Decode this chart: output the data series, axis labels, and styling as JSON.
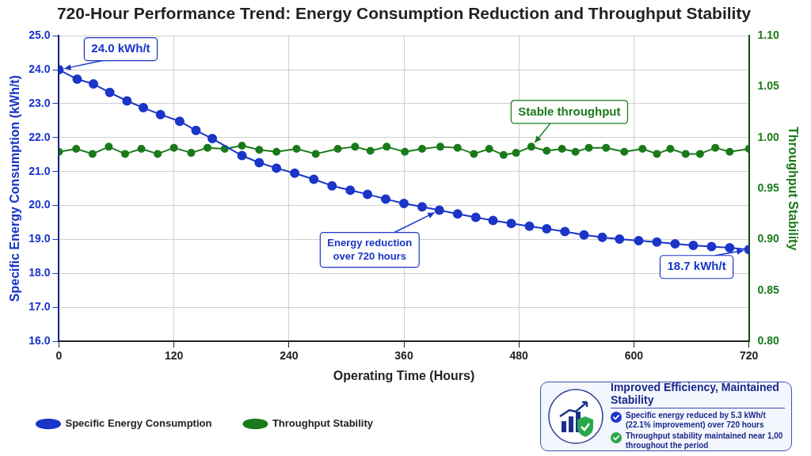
{
  "chart_data": [
    {
      "type": "line",
      "title": "720-Hour Performance Trend: Energy Consumption Reduction and Throughput Stability",
      "xlabel": "Operating Time (Hours)",
      "ylabel": "Specific Energy Consumption (kWh/t)",
      "y2label": "Throughput Stability",
      "xlim": [
        0,
        720
      ],
      "xticks": [
        0,
        120,
        240,
        360,
        480,
        600,
        720
      ],
      "ylim": [
        16,
        25
      ],
      "yticks": [
        {
          "value": 16,
          "label": "16.0"
        },
        {
          "value": 17,
          "label": "17.0"
        },
        {
          "value": 18,
          "label": "18.0"
        },
        {
          "value": 19,
          "label": "19.0"
        },
        {
          "value": 20,
          "label": "20.0"
        },
        {
          "value": 21,
          "label": "21.0"
        },
        {
          "value": 22,
          "label": "22.0"
        },
        {
          "value": 23,
          "label": "23.0"
        },
        {
          "value": 24,
          "label": "24.0"
        },
        {
          "value": 25,
          "label": "25.0"
        }
      ],
      "y2lim": [
        0.8,
        1.1
      ],
      "y2ticks": [
        {
          "value": 0.8,
          "label": "0.80"
        },
        0.85,
        {
          "value": 0.9,
          "label": "0.90"
        },
        0.95,
        {
          "value": 1.0,
          "label": "1.00"
        },
        1.05,
        {
          "value": 1.1,
          "label": "1.10"
        }
      ],
      "grid": true,
      "legend": "bottom left",
      "marker": "circle",
      "series": [
        {
          "name": "Specific Energy Consumption",
          "color": "#1a35c8",
          "x": [
            0,
            19,
            36,
            53,
            71,
            88,
            106,
            126,
            143,
            160,
            191,
            209,
            227,
            246,
            266,
            285,
            304,
            322,
            341,
            360,
            379,
            397,
            416,
            435,
            453,
            472,
            491,
            509,
            528,
            548,
            567,
            585,
            605,
            624,
            643,
            662,
            681,
            700,
            720
          ],
          "values": [
            24.0,
            23.72,
            23.58,
            23.33,
            23.08,
            22.88,
            22.68,
            22.48,
            22.21,
            21.97,
            21.47,
            21.26,
            21.1,
            20.95,
            20.77,
            20.58,
            20.45,
            20.33,
            20.19,
            20.06,
            19.96,
            19.86,
            19.75,
            19.65,
            19.56,
            19.47,
            19.39,
            19.31,
            19.23,
            19.13,
            19.06,
            19.01,
            18.96,
            18.92,
            18.87,
            18.82,
            18.79,
            18.75,
            18.7
          ]
        },
        {
          "name": "Throughput Stability",
          "color": "#1a7a1a",
          "axis": "y2",
          "x": [
            0,
            18,
            35,
            52,
            69,
            86,
            103,
            120,
            138,
            155,
            173,
            191,
            209,
            227,
            248,
            268,
            291,
            309,
            325,
            342,
            361,
            379,
            398,
            416,
            433,
            449,
            464,
            477,
            493,
            509,
            525,
            539,
            553,
            571,
            590,
            609,
            624,
            638,
            654,
            669,
            685,
            700,
            720
          ],
          "values": [
            0.986,
            0.989,
            0.984,
            0.991,
            0.984,
            0.989,
            0.984,
            0.99,
            0.985,
            0.99,
            0.989,
            0.992,
            0.988,
            0.986,
            0.989,
            0.984,
            0.989,
            0.991,
            0.987,
            0.991,
            0.986,
            0.989,
            0.991,
            0.99,
            0.984,
            0.989,
            0.983,
            0.985,
            0.991,
            0.987,
            0.989,
            0.986,
            0.99,
            0.99,
            0.986,
            0.989,
            0.984,
            0.989,
            0.984,
            0.984,
            0.99,
            0.986,
            0.989
          ]
        }
      ],
      "annotations": [
        {
          "text": "24.0 kWh/t",
          "x": 0,
          "y": 24.0
        },
        {
          "text": "Energy reduction\nover 720 hours",
          "x": 397,
          "y": 19.86
        },
        {
          "text": "Stable throughput",
          "x": 493,
          "y": 21.73
        },
        {
          "text": "18.7 kWh/t",
          "x": 720,
          "y": 18.7
        }
      ]
    },
    {
      "type": "other",
      "title": "Improved Efficiency, Maintained Stability",
      "annotations": [
        "Specific energy reduced by 5.3 kWh/t (22.1% improvement) over 720 hours",
        "Throughput stability maintained near 1,00 throughout the period"
      ]
    }
  ]
}
